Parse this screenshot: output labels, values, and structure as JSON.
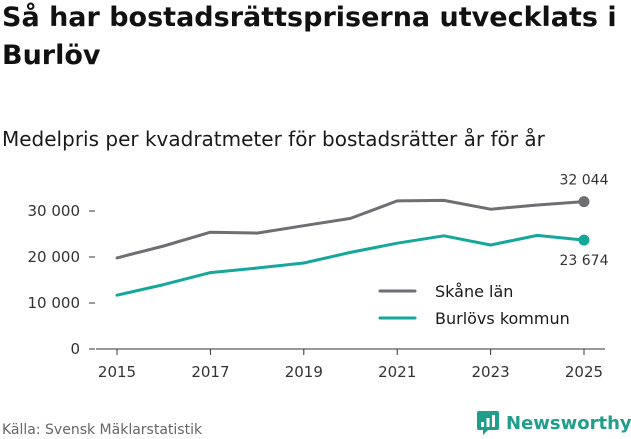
{
  "header": {
    "title": "Så har bostadsrättspriserna utvecklats i Burlöv",
    "subtitle": "Medelpris per kvadratmeter för bostadsrätter år för år"
  },
  "footer": {
    "source": "Källa: Svensk Mäklarstatistik",
    "brand": "Newsworthy",
    "brand_icon": "newsworthy-logo-icon",
    "brand_color": "#1f9e8c"
  },
  "chart_data": {
    "type": "line",
    "title": "Medelpris per kvadratmeter för bostadsrätter år för år",
    "xlabel": "",
    "ylabel": "",
    "x": [
      2015,
      2016,
      2017,
      2018,
      2019,
      2020,
      2021,
      2022,
      2023,
      2024,
      2025
    ],
    "xticks": [
      2015,
      2017,
      2019,
      2021,
      2023,
      2025
    ],
    "xtick_labels": [
      "2015",
      "2017",
      "2019",
      "2021",
      "2023",
      "2025"
    ],
    "yticks": [
      0,
      10000,
      20000,
      30000
    ],
    "ytick_labels": [
      "0",
      "10 000",
      "20 000",
      "30 000"
    ],
    "xlim": [
      2014.55,
      2025.45
    ],
    "ylim": [
      0,
      35000
    ],
    "grid": false,
    "legend": "bottom-right",
    "series": [
      {
        "name": "Skåne län",
        "color": "#6e6e73",
        "values": [
          19800,
          22400,
          25400,
          25200,
          26800,
          28400,
          32200,
          32300,
          30400,
          31300,
          32044
        ],
        "end_label": "32 044"
      },
      {
        "name": "Burlövs kommun",
        "color": "#16a79b",
        "values": [
          11700,
          14000,
          16600,
          17600,
          18700,
          21000,
          23000,
          24600,
          22600,
          24700,
          23674
        ],
        "end_label": "23 674"
      }
    ]
  }
}
